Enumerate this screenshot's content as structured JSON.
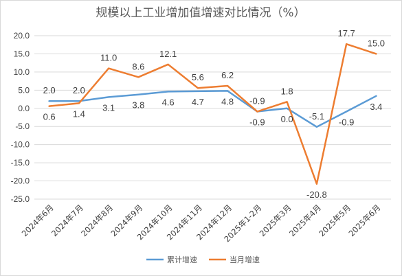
{
  "chart_data": {
    "type": "line",
    "title": "规模以上工业增加值增速对比情况（%）",
    "xlabel": "",
    "ylabel": "",
    "ylim": [
      -25,
      20
    ],
    "yticks": [
      "20.0",
      "15.0",
      "10.0",
      "5.0",
      "0.0",
      "-5.0",
      "-10.0",
      "-15.0",
      "-20.0",
      "-25.0"
    ],
    "grid": true,
    "legend_position": "bottom",
    "categories": [
      "2024年6月",
      "2024年7月",
      "2024年8月",
      "2024年9月",
      "2024年10月",
      "2024年11月",
      "2024年12月",
      "2025年1-2月",
      "2025年3月",
      "2025年4月",
      "2025年5月",
      "2025年6月"
    ],
    "series": [
      {
        "name": "累计增速",
        "color": "#5b9bd5",
        "values": [
          2.0,
          2.0,
          3.1,
          3.8,
          4.6,
          4.7,
          4.8,
          -0.9,
          0.0,
          -5.1,
          -0.9,
          3.4
        ],
        "labels": [
          "2.0",
          "2.0",
          "3.1",
          "3.8",
          "4.6",
          "4.7",
          "4.8",
          "-0.9",
          "0.0",
          "-5.1",
          "-0.9",
          "3.4"
        ]
      },
      {
        "name": "当月增速",
        "color": "#ed7d31",
        "values": [
          0.6,
          1.4,
          11.0,
          8.6,
          12.1,
          5.6,
          6.2,
          -0.9,
          1.8,
          -20.8,
          17.7,
          15.0
        ],
        "labels": [
          "0.6",
          "1.4",
          "11.0",
          "8.6",
          "12.1",
          "5.6",
          "6.2",
          "-0.9",
          "1.8",
          "-20.8",
          "17.7",
          "15.0"
        ]
      }
    ]
  }
}
